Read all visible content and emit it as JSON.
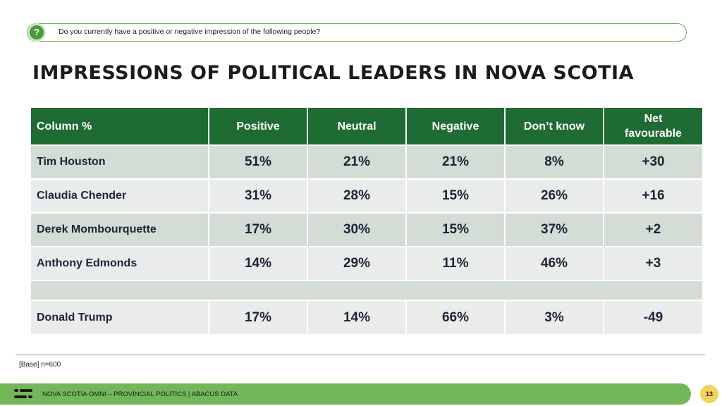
{
  "question": {
    "icon": "question-icon",
    "text": "Do you currently have a positive or negative impression of the following people?"
  },
  "title": "IMPRESSIONS OF POLITICAL LEADERS IN NOVA SCOTIA",
  "table": {
    "headers": [
      "Column %",
      "Positive",
      "Neutral",
      "Negative",
      "Don’t know",
      "Net favourable"
    ],
    "rows": [
      {
        "name": "Tim Houston",
        "positive": "51%",
        "neutral": "21%",
        "negative": "21%",
        "dont_know": "8%",
        "net": "+30"
      },
      {
        "name": "Claudia Chender",
        "positive": "31%",
        "neutral": "28%",
        "negative": "15%",
        "dont_know": "26%",
        "net": "+16"
      },
      {
        "name": "Derek Mombourquette",
        "positive": "17%",
        "neutral": "30%",
        "negative": "15%",
        "dont_know": "37%",
        "net": "+2"
      },
      {
        "name": "Anthony Edmonds",
        "positive": "14%",
        "neutral": "29%",
        "negative": "11%",
        "dont_know": "46%",
        "net": "+3"
      },
      {
        "name": "Donald Trump",
        "positive": "17%",
        "neutral": "14%",
        "negative": "66%",
        "dont_know": "3%",
        "net": "-49"
      }
    ]
  },
  "base_note": "[Base] n=600",
  "footer": {
    "logo_icon": "abacus-logo-icon",
    "text": "NOVA SCOTIA OMNI – PROVINCIAL POLITICS | ABACUS DATA",
    "page_number": "13"
  },
  "colors": {
    "header_green": "#1e6b34",
    "accent_green": "#72b75a",
    "row_dark": "#d3dcd5",
    "row_light": "#e9ecea",
    "page_badge": "#f2d45c"
  }
}
